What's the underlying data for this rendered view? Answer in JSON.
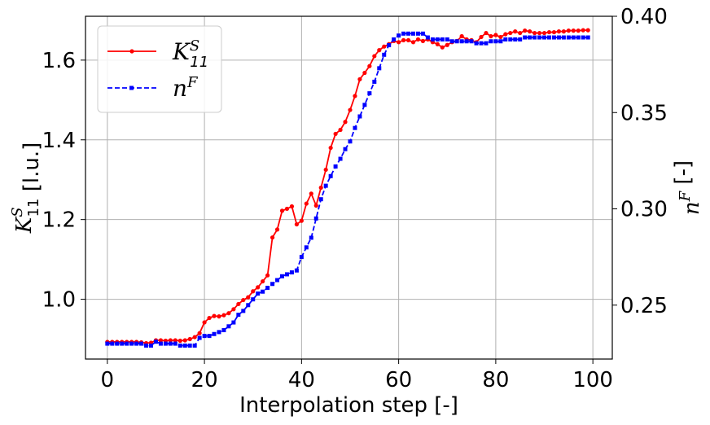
{
  "chart_data": {
    "type": "line",
    "xlabel": "Interpolation step [-]",
    "ylabel_left": "K_11^S [l.u.]",
    "ylabel_right": "n^F [-]",
    "xlim": [
      -4.5,
      104
    ],
    "ylim_left": [
      0.85,
      1.71
    ],
    "ylim_right": [
      0.222,
      0.4
    ],
    "x_ticks": [
      0,
      20,
      40,
      60,
      80,
      100
    ],
    "y_ticks_left": [
      1.0,
      1.2,
      1.4,
      1.6
    ],
    "y_ticks_right": [
      0.25,
      0.3,
      0.35,
      0.4
    ],
    "x_tick_labels": [
      "0",
      "20",
      "40",
      "60",
      "80",
      "100"
    ],
    "y_tick_labels_left": [
      "1.0",
      "1.2",
      "1.4",
      "1.6"
    ],
    "y_tick_labels_right": [
      "0.25",
      "0.30",
      "0.35",
      "0.40"
    ],
    "grid": true,
    "legend_position": "top-left",
    "legend": [
      {
        "base": "K",
        "sup": "S",
        "sub": "11",
        "color": "#ff0000",
        "style": "solid",
        "marker": "circle"
      },
      {
        "base": "n",
        "sup": "F",
        "sub": "",
        "color": "#0000ff",
        "style": "dashed",
        "marker": "square"
      }
    ],
    "series": [
      {
        "name": "K_11^S",
        "axis": "left",
        "color": "#ff0000",
        "x": [
          0,
          1,
          2,
          3,
          4,
          5,
          6,
          7,
          8,
          9,
          10,
          11,
          12,
          13,
          14,
          15,
          16,
          17,
          18,
          19,
          20,
          21,
          22,
          23,
          24,
          25,
          26,
          27,
          28,
          29,
          30,
          31,
          32,
          33,
          34,
          35,
          36,
          37,
          38,
          39,
          40,
          41,
          42,
          43,
          44,
          45,
          46,
          47,
          48,
          49,
          50,
          51,
          52,
          53,
          54,
          55,
          56,
          57,
          58,
          59,
          60,
          61,
          62,
          63,
          64,
          65,
          66,
          67,
          68,
          69,
          70,
          71,
          72,
          73,
          74,
          75,
          76,
          77,
          78,
          79,
          80,
          81,
          82,
          83,
          84,
          85,
          86,
          87,
          88,
          89,
          90,
          91,
          92,
          93,
          94,
          95,
          96,
          97,
          98,
          99
        ],
        "values": [
          0.893,
          0.893,
          0.893,
          0.893,
          0.893,
          0.893,
          0.893,
          0.892,
          0.89,
          0.891,
          0.897,
          0.897,
          0.896,
          0.897,
          0.897,
          0.896,
          0.897,
          0.9,
          0.905,
          0.915,
          0.942,
          0.953,
          0.958,
          0.957,
          0.96,
          0.965,
          0.975,
          0.988,
          0.998,
          1.005,
          1.02,
          1.03,
          1.045,
          1.06,
          1.155,
          1.175,
          1.222,
          1.227,
          1.233,
          1.188,
          1.197,
          1.24,
          1.265,
          1.235,
          1.28,
          1.325,
          1.38,
          1.415,
          1.425,
          1.445,
          1.475,
          1.51,
          1.552,
          1.568,
          1.585,
          1.61,
          1.625,
          1.634,
          1.64,
          1.648,
          1.645,
          1.65,
          1.65,
          1.645,
          1.652,
          1.648,
          1.652,
          1.645,
          1.64,
          1.632,
          1.638,
          1.645,
          1.648,
          1.66,
          1.652,
          1.65,
          1.645,
          1.658,
          1.668,
          1.66,
          1.663,
          1.658,
          1.665,
          1.668,
          1.672,
          1.668,
          1.674,
          1.672,
          1.668,
          1.668,
          1.668,
          1.67,
          1.67,
          1.672,
          1.672,
          1.674,
          1.674,
          1.674,
          1.675,
          1.675
        ]
      },
      {
        "name": "n^F",
        "axis": "right",
        "color": "#0000ff",
        "x": [
          0,
          1,
          2,
          3,
          4,
          5,
          6,
          7,
          8,
          9,
          10,
          11,
          12,
          13,
          14,
          15,
          16,
          17,
          18,
          19,
          20,
          21,
          22,
          23,
          24,
          25,
          26,
          27,
          28,
          29,
          30,
          31,
          32,
          33,
          34,
          35,
          36,
          37,
          38,
          39,
          40,
          41,
          42,
          43,
          44,
          45,
          46,
          47,
          48,
          49,
          50,
          51,
          52,
          53,
          54,
          55,
          56,
          57,
          58,
          59,
          60,
          61,
          62,
          63,
          64,
          65,
          66,
          67,
          68,
          69,
          70,
          71,
          72,
          73,
          74,
          75,
          76,
          77,
          78,
          79,
          80,
          81,
          82,
          83,
          84,
          85,
          86,
          87,
          88,
          89,
          90,
          91,
          92,
          93,
          94,
          95,
          96,
          97,
          98,
          99
        ],
        "values": [
          0.23,
          0.23,
          0.23,
          0.23,
          0.23,
          0.23,
          0.23,
          0.23,
          0.229,
          0.229,
          0.231,
          0.23,
          0.23,
          0.23,
          0.23,
          0.229,
          0.229,
          0.229,
          0.229,
          0.233,
          0.234,
          0.234,
          0.235,
          0.236,
          0.237,
          0.239,
          0.241,
          0.245,
          0.247,
          0.25,
          0.253,
          0.256,
          0.257,
          0.259,
          0.261,
          0.263,
          0.265,
          0.266,
          0.267,
          0.268,
          0.275,
          0.28,
          0.285,
          0.295,
          0.305,
          0.312,
          0.317,
          0.322,
          0.326,
          0.331,
          0.335,
          0.342,
          0.348,
          0.354,
          0.36,
          0.366,
          0.373,
          0.38,
          0.385,
          0.388,
          0.39,
          0.391,
          0.391,
          0.391,
          0.391,
          0.391,
          0.389,
          0.388,
          0.388,
          0.388,
          0.388,
          0.387,
          0.387,
          0.387,
          0.387,
          0.387,
          0.386,
          0.386,
          0.386,
          0.387,
          0.387,
          0.387,
          0.388,
          0.388,
          0.388,
          0.388,
          0.389,
          0.389,
          0.389,
          0.389,
          0.389,
          0.389,
          0.389,
          0.389,
          0.389,
          0.389,
          0.389,
          0.389,
          0.389,
          0.389
        ]
      }
    ]
  }
}
